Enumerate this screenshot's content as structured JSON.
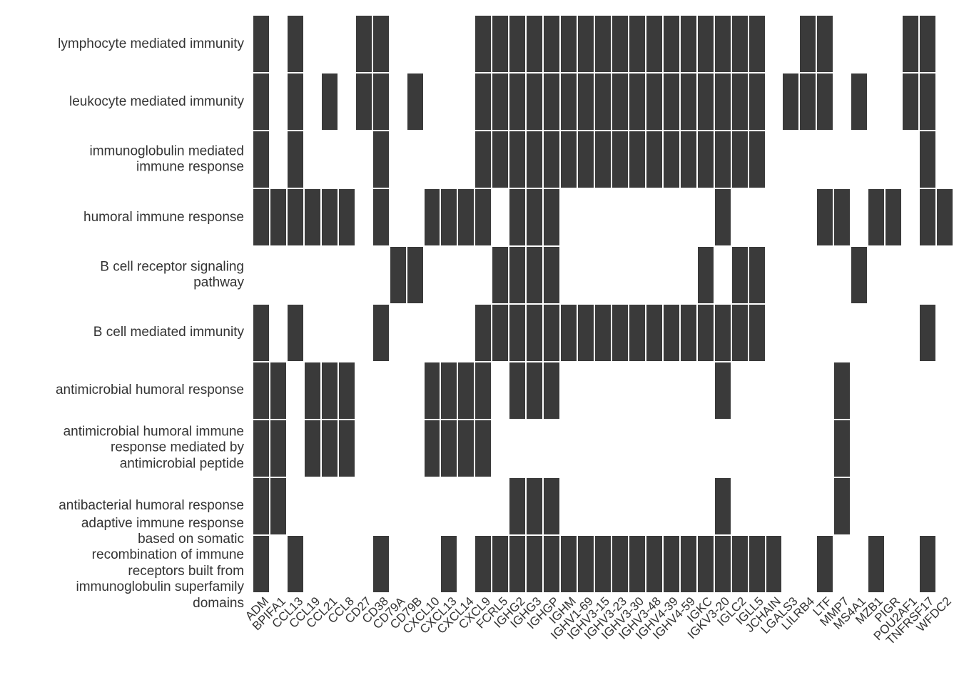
{
  "figure": {
    "background_color": "#ffffff",
    "text_color": "#333333"
  },
  "chart_data": {
    "type": "heatmap",
    "title": "",
    "xlabel": "",
    "ylabel": "",
    "legend": "none",
    "grid": "off",
    "cell_color": "#3a3a3a",
    "empty_color": "#ffffff",
    "x_labels": [
      "ADM",
      "BPIFA1",
      "CCL13",
      "CCL19",
      "CCL21",
      "CCL8",
      "CD27",
      "CD38",
      "CD79A",
      "CD79B",
      "CXCL10",
      "CXCL13",
      "CXCL14",
      "CXCL9",
      "FCRL5",
      "IGHG2",
      "IGHG3",
      "IGHGP",
      "IGHM",
      "IGHV1-69",
      "IGHV3-15",
      "IGHV3-23",
      "IGHV3-30",
      "IGHV3-48",
      "IGHV4-39",
      "IGHV4-59",
      "IGKC",
      "IGKV3-20",
      "IGLC2",
      "IGLL5",
      "JCHAIN",
      "LGALS3",
      "LILRB4",
      "LTF",
      "MMP7",
      "MS4A1",
      "MZB1",
      "PIGR",
      "POU2AF1",
      "TNFRSF17",
      "WFDC2"
    ],
    "y_labels": [
      "lymphocyte mediated immunity",
      "leukocyte mediated immunity",
      "immunoglobulin mediated\nimmune response",
      "humoral immune response",
      "B cell receptor signaling\npathway",
      "B cell mediated immunity",
      "antimicrobial humoral response",
      "antimicrobial humoral immune\nresponse mediated by\nantimicrobial peptide",
      "antibacterial humoral response",
      "adaptive immune response\nbased on somatic\nrecombination of immune\nreceptors built from\nimmunoglobulin superfamily\ndomains"
    ],
    "matrix": [
      [
        1,
        0,
        1,
        0,
        0,
        0,
        1,
        1,
        0,
        0,
        0,
        0,
        0,
        1,
        1,
        1,
        1,
        1,
        1,
        1,
        1,
        1,
        1,
        1,
        1,
        1,
        1,
        1,
        1,
        1,
        0,
        0,
        1,
        1,
        0,
        0,
        0,
        0,
        1,
        1,
        0
      ],
      [
        1,
        0,
        1,
        0,
        1,
        0,
        1,
        1,
        0,
        1,
        0,
        0,
        0,
        1,
        1,
        1,
        1,
        1,
        1,
        1,
        1,
        1,
        1,
        1,
        1,
        1,
        1,
        1,
        1,
        1,
        0,
        1,
        1,
        1,
        0,
        1,
        0,
        0,
        1,
        1,
        0
      ],
      [
        1,
        0,
        1,
        0,
        0,
        0,
        0,
        1,
        0,
        0,
        0,
        0,
        0,
        1,
        1,
        1,
        1,
        1,
        1,
        1,
        1,
        1,
        1,
        1,
        1,
        1,
        1,
        1,
        1,
        1,
        0,
        0,
        0,
        0,
        0,
        0,
        0,
        0,
        0,
        1,
        0
      ],
      [
        1,
        1,
        1,
        1,
        1,
        1,
        0,
        1,
        0,
        0,
        1,
        1,
        1,
        1,
        0,
        1,
        1,
        1,
        0,
        0,
        0,
        0,
        0,
        0,
        0,
        0,
        0,
        1,
        0,
        0,
        0,
        0,
        0,
        1,
        1,
        0,
        1,
        1,
        0,
        1,
        1
      ],
      [
        0,
        0,
        0,
        0,
        0,
        0,
        0,
        0,
        1,
        1,
        0,
        0,
        0,
        0,
        1,
        1,
        1,
        1,
        0,
        0,
        0,
        0,
        0,
        0,
        0,
        0,
        1,
        0,
        1,
        1,
        0,
        0,
        0,
        0,
        0,
        1,
        0,
        0,
        0,
        0,
        0
      ],
      [
        1,
        0,
        1,
        0,
        0,
        0,
        0,
        1,
        0,
        0,
        0,
        0,
        0,
        1,
        1,
        1,
        1,
        1,
        1,
        1,
        1,
        1,
        1,
        1,
        1,
        1,
        1,
        1,
        1,
        1,
        0,
        0,
        0,
        0,
        0,
        0,
        0,
        0,
        0,
        1,
        0
      ],
      [
        1,
        1,
        0,
        1,
        1,
        1,
        0,
        0,
        0,
        0,
        1,
        1,
        1,
        1,
        0,
        1,
        1,
        1,
        0,
        0,
        0,
        0,
        0,
        0,
        0,
        0,
        0,
        1,
        0,
        0,
        0,
        0,
        0,
        0,
        1,
        0,
        0,
        0,
        0,
        0,
        0
      ],
      [
        1,
        1,
        0,
        1,
        1,
        1,
        0,
        0,
        0,
        0,
        1,
        1,
        1,
        1,
        0,
        0,
        0,
        0,
        0,
        0,
        0,
        0,
        0,
        0,
        0,
        0,
        0,
        0,
        0,
        0,
        0,
        0,
        0,
        0,
        1,
        0,
        0,
        0,
        0,
        0,
        0
      ],
      [
        1,
        1,
        0,
        0,
        0,
        0,
        0,
        0,
        0,
        0,
        0,
        0,
        0,
        0,
        0,
        1,
        1,
        1,
        0,
        0,
        0,
        0,
        0,
        0,
        0,
        0,
        0,
        1,
        0,
        0,
        0,
        0,
        0,
        0,
        1,
        0,
        0,
        0,
        0,
        0,
        0
      ],
      [
        1,
        0,
        1,
        0,
        0,
        0,
        0,
        1,
        0,
        0,
        0,
        1,
        0,
        1,
        1,
        1,
        1,
        1,
        1,
        1,
        1,
        1,
        1,
        1,
        1,
        1,
        1,
        1,
        1,
        1,
        1,
        0,
        0,
        1,
        0,
        0,
        1,
        0,
        0,
        1,
        0
      ]
    ]
  }
}
